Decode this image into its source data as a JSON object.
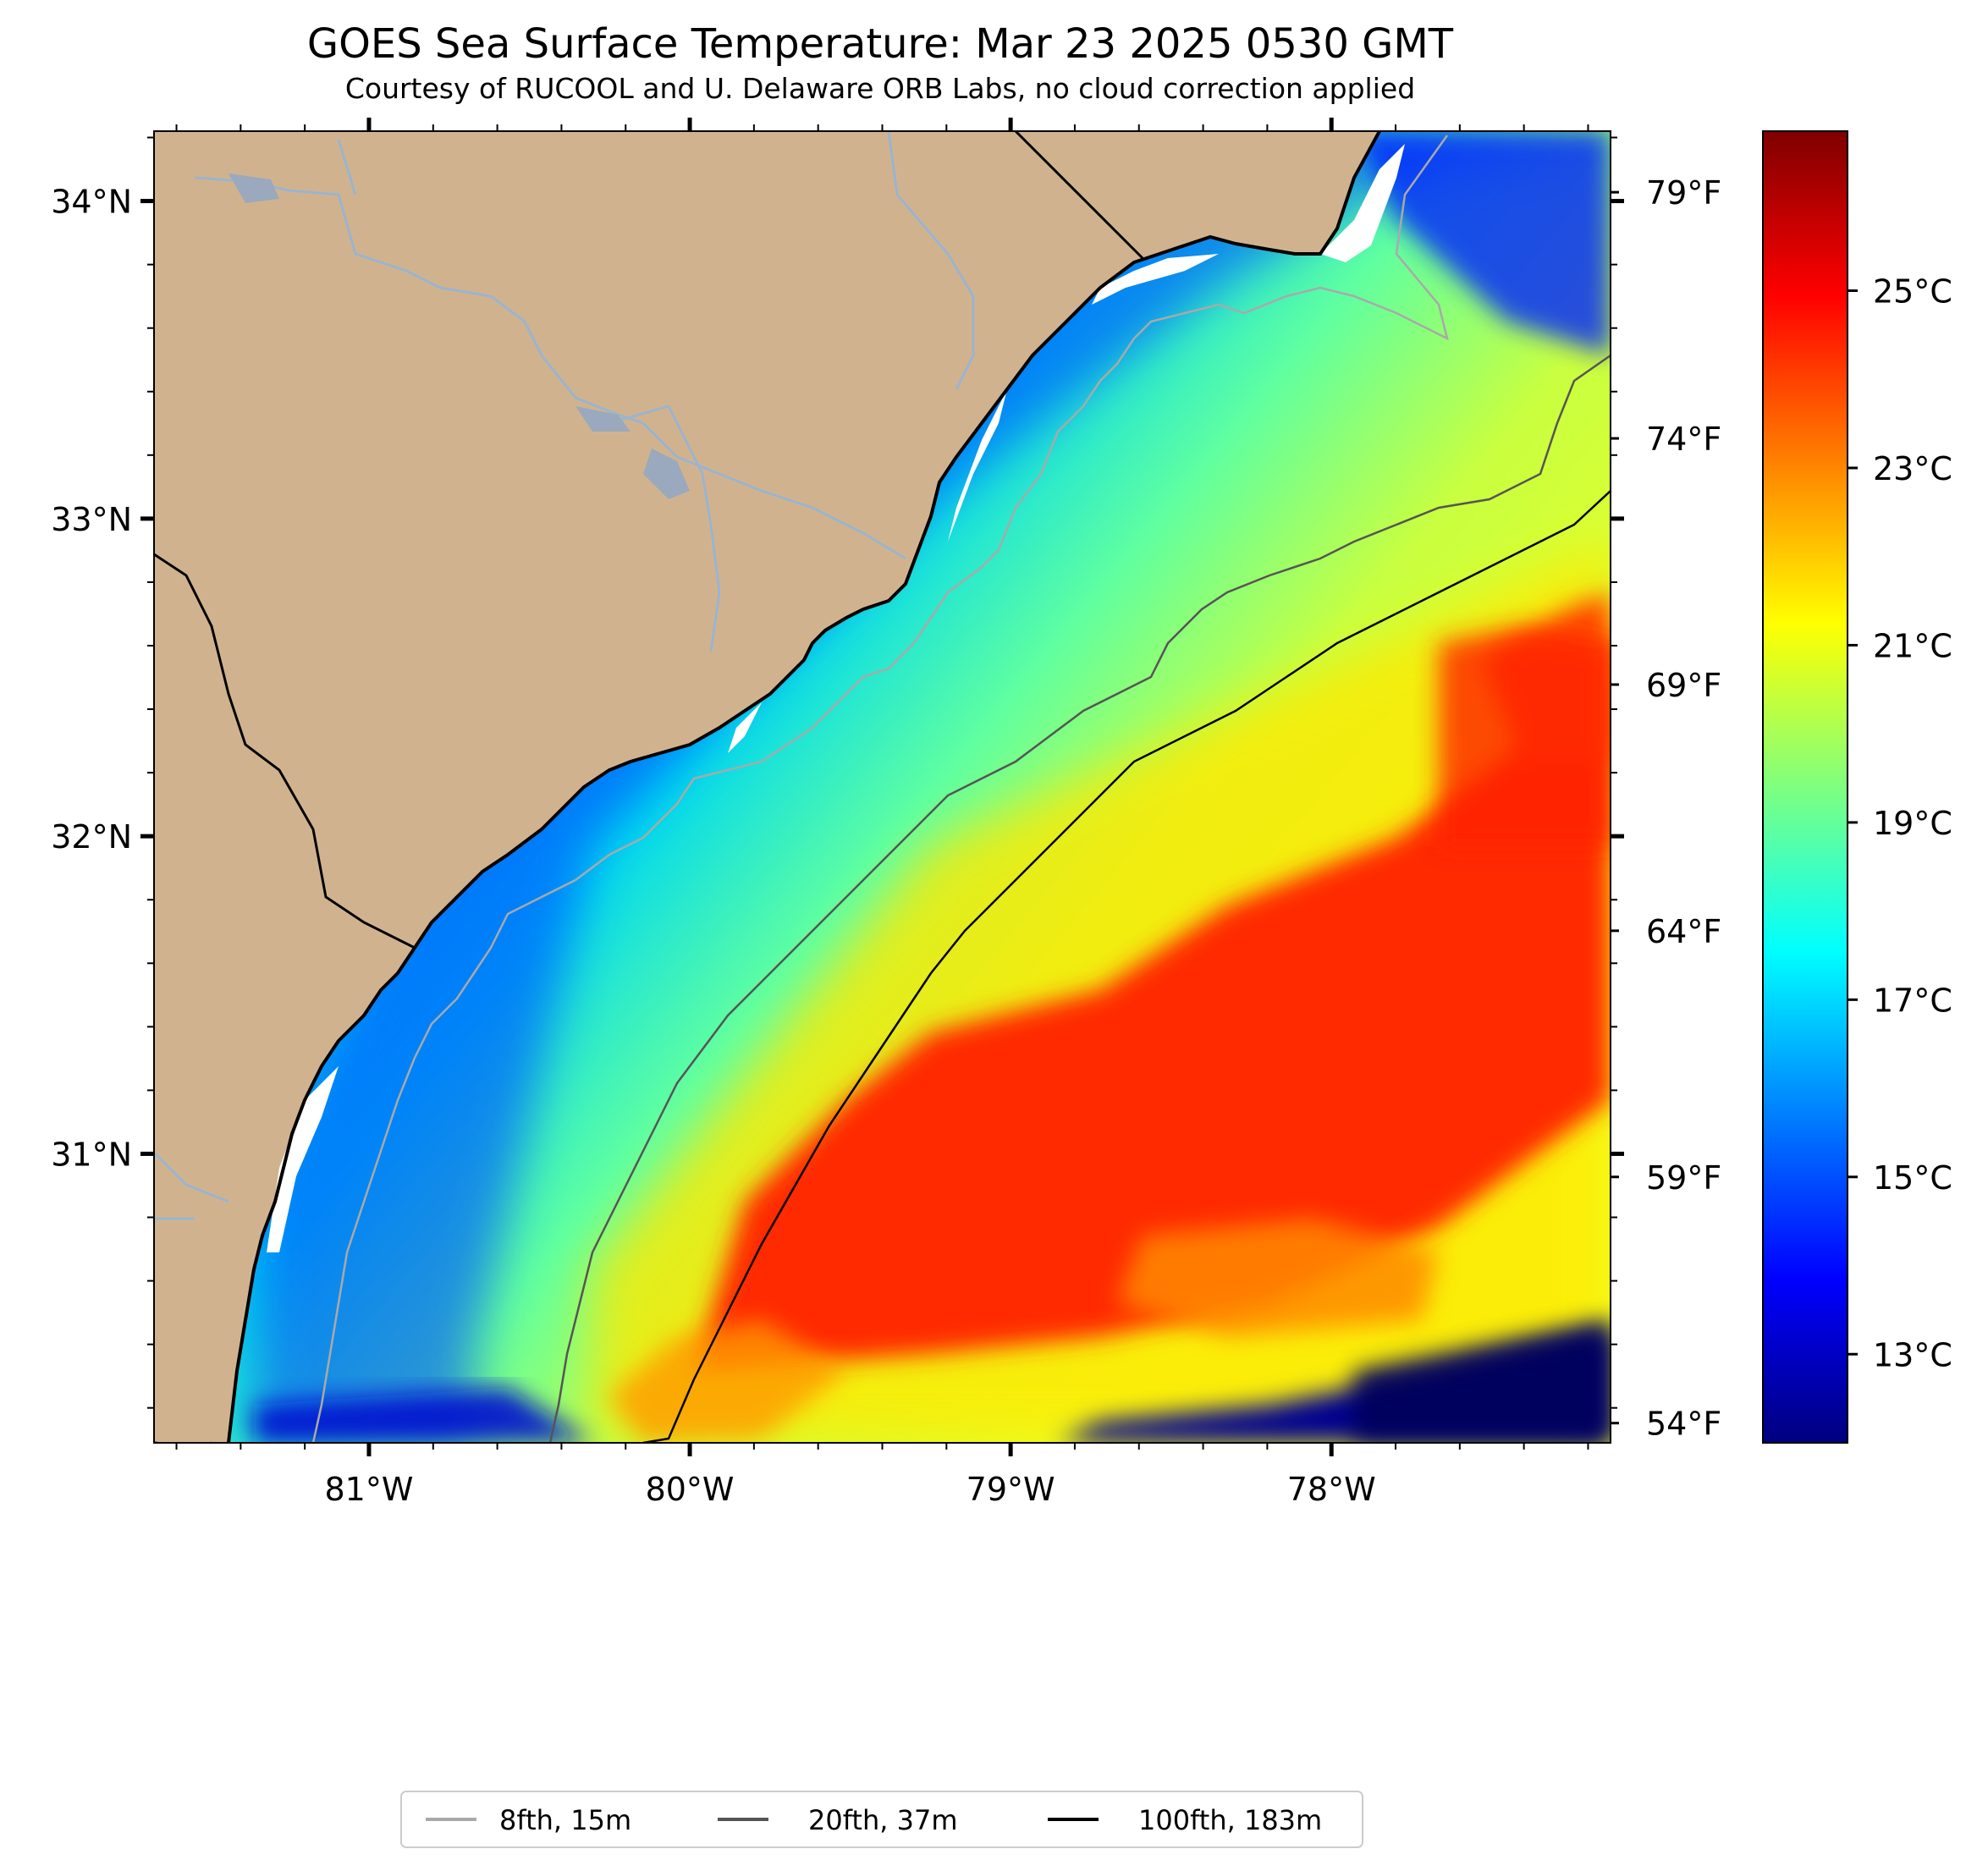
{
  "title": "GOES Sea Surface Temperature: Mar 23 2025 0530 GMT",
  "subtitle": "Courtesy of RUCOOL and U. Delaware ORB Labs, no cloud correction applied",
  "map": {
    "lon_range": [
      -81.67,
      -77.13
    ],
    "lat_range": [
      30.09,
      34.22
    ],
    "lat_ticks": [
      {
        "value": 34,
        "label": "34°N"
      },
      {
        "value": 33,
        "label": "33°N"
      },
      {
        "value": 32,
        "label": "32°N"
      },
      {
        "value": 31,
        "label": "31°N"
      }
    ],
    "lon_ticks": [
      {
        "value": -81,
        "label": "81°W"
      },
      {
        "value": -80,
        "label": "80°W"
      },
      {
        "value": -79,
        "label": "79°W"
      },
      {
        "value": -78,
        "label": "78°W"
      }
    ],
    "fahrenheit_ticks": [
      {
        "value": 79,
        "label": "79°F"
      },
      {
        "value": 74,
        "label": "74°F"
      },
      {
        "value": 69,
        "label": "69°F"
      },
      {
        "value": 64,
        "label": "64°F"
      },
      {
        "value": 59,
        "label": "59°F"
      },
      {
        "value": 54,
        "label": "54°F"
      }
    ]
  },
  "colorbar": {
    "range_c": [
      12.0,
      26.8
    ],
    "ticks": [
      {
        "value": 25,
        "label": "25°C"
      },
      {
        "value": 23,
        "label": "23°C"
      },
      {
        "value": 21,
        "label": "21°C"
      },
      {
        "value": 19,
        "label": "19°C"
      },
      {
        "value": 17,
        "label": "17°C"
      },
      {
        "value": 15,
        "label": "15°C"
      },
      {
        "value": 13,
        "label": "13°C"
      }
    ],
    "colormap": [
      "#00007f",
      "#0000ff",
      "#007fff",
      "#00ffff",
      "#7fff7f",
      "#ffff00",
      "#ff7f00",
      "#ff0000",
      "#7f0000"
    ]
  },
  "legend": {
    "items": [
      {
        "label": "8fth, 15m",
        "color": "#a9a9a9"
      },
      {
        "label": "20fth, 37m",
        "color": "#555555"
      },
      {
        "label": "100fth, 183m",
        "color": "#000000"
      }
    ]
  },
  "colors": {
    "land": "#d0b38e",
    "river": "#9bb4cf",
    "coast": "#000000"
  }
}
